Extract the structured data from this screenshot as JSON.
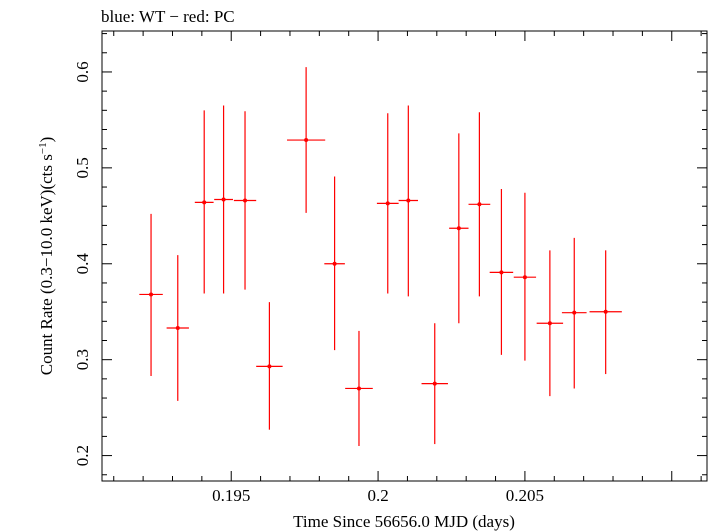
{
  "chart_data": {
    "type": "scatter",
    "title": "blue: WT − red: PC",
    "xlabel": "Time Since 56656.0 MJD (days)",
    "ylabel_main": "Count Rate (0.3−10.0 keV)(cts s",
    "ylabel_sup": "−1",
    "ylabel_end": ")",
    "xlim": [
      0.1906,
      0.2112
    ],
    "ylim": [
      0.1735,
      0.6427
    ],
    "x_ticks": [
      {
        "value": 0.195,
        "label": "0.195"
      },
      {
        "value": 0.2,
        "label": "0.2"
      },
      {
        "value": 0.205,
        "label": "0.205"
      }
    ],
    "y_ticks": [
      {
        "value": 0.2,
        "label": "0.2"
      },
      {
        "value": 0.3,
        "label": "0.3"
      },
      {
        "value": 0.4,
        "label": "0.4"
      },
      {
        "value": 0.5,
        "label": "0.5"
      },
      {
        "value": 0.6,
        "label": "0.6"
      }
    ],
    "grid": false,
    "series": [
      {
        "color": "#ff0000",
        "points": [
          {
            "x": 0.19227,
            "xerr": 0.0004,
            "y": 0.368,
            "ylo": 0.283,
            "yhi": 0.452
          },
          {
            "x": 0.19318,
            "xerr": 0.00038,
            "y": 0.333,
            "ylo": 0.257,
            "yhi": 0.409
          },
          {
            "x": 0.19408,
            "xerr": 0.00032,
            "y": 0.464,
            "ylo": 0.369,
            "yhi": 0.56
          },
          {
            "x": 0.19474,
            "xerr": 0.00032,
            "y": 0.467,
            "ylo": 0.369,
            "yhi": 0.565
          },
          {
            "x": 0.19547,
            "xerr": 0.00038,
            "y": 0.466,
            "ylo": 0.373,
            "yhi": 0.559
          },
          {
            "x": 0.1963,
            "xerr": 0.00045,
            "y": 0.293,
            "ylo": 0.227,
            "yhi": 0.36
          },
          {
            "x": 0.19755,
            "xerr": 0.00065,
            "y": 0.529,
            "ylo": 0.453,
            "yhi": 0.605
          },
          {
            "x": 0.19852,
            "xerr": 0.00035,
            "y": 0.4,
            "ylo": 0.31,
            "yhi": 0.491
          },
          {
            "x": 0.19935,
            "xerr": 0.00047,
            "y": 0.27,
            "ylo": 0.21,
            "yhi": 0.33
          },
          {
            "x": 0.20033,
            "xerr": 0.00037,
            "y": 0.463,
            "ylo": 0.369,
            "yhi": 0.557
          },
          {
            "x": 0.20103,
            "xerr": 0.00033,
            "y": 0.466,
            "ylo": 0.366,
            "yhi": 0.565
          },
          {
            "x": 0.20193,
            "xerr": 0.00045,
            "y": 0.275,
            "ylo": 0.212,
            "yhi": 0.338
          },
          {
            "x": 0.20275,
            "xerr": 0.00033,
            "y": 0.437,
            "ylo": 0.338,
            "yhi": 0.536
          },
          {
            "x": 0.20345,
            "xerr": 0.00037,
            "y": 0.462,
            "ylo": 0.366,
            "yhi": 0.558
          },
          {
            "x": 0.2042,
            "xerr": 0.0004,
            "y": 0.391,
            "ylo": 0.305,
            "yhi": 0.478
          },
          {
            "x": 0.205,
            "xerr": 0.00038,
            "y": 0.386,
            "ylo": 0.299,
            "yhi": 0.474
          },
          {
            "x": 0.20585,
            "xerr": 0.00045,
            "y": 0.338,
            "ylo": 0.262,
            "yhi": 0.414
          },
          {
            "x": 0.20668,
            "xerr": 0.00042,
            "y": 0.349,
            "ylo": 0.27,
            "yhi": 0.427
          },
          {
            "x": 0.20775,
            "xerr": 0.00055,
            "y": 0.35,
            "ylo": 0.285,
            "yhi": 0.414
          }
        ]
      }
    ]
  }
}
